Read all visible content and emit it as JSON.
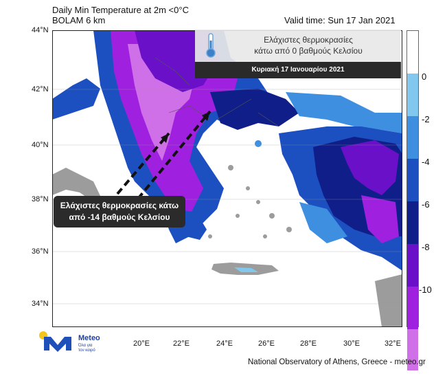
{
  "header": {
    "title_line1": "Daily Min Temperature at 2m <0°C",
    "title_line2": "BOLAM 6 km",
    "valid_time": "Valid time: Sun 17 Jan 2021"
  },
  "map": {
    "lat_labels": [
      "44°N",
      "42°N",
      "40°N",
      "38°N",
      "36°N",
      "34°N"
    ],
    "lon_labels": [
      "20°E",
      "22°E",
      "24°E",
      "26°E",
      "28°E",
      "30°E",
      "32°E"
    ]
  },
  "colorbar": {
    "labels": [
      "0",
      "-2",
      "-4",
      "-6",
      "-8",
      "-10"
    ],
    "colors": [
      "#ffffff",
      "#82c8ee",
      "#3f8fe0",
      "#1c4fc0",
      "#101e8a",
      "#6a10c8",
      "#a020e0",
      "#d070e8"
    ]
  },
  "banner": {
    "line1": "Ελάχιστες θερμοκρασίες",
    "line2": "κάτω από 0 βαθμούς Κελσίου",
    "date": "Κυριακή 17 Ιανουαρίου 2021"
  },
  "callout": {
    "line1": "Ελάχιστες θερμοκρασίες κάτω",
    "line2": "από -14 βαθμούς Κελσίου"
  },
  "logo": {
    "name": "Meteo",
    "tagline1": "Όλα για",
    "tagline2": "τον καιρό"
  },
  "footer": {
    "credit": "National Observatory of Athens, Greece - meteo.gr"
  },
  "icons": {
    "thermometer": "thermometer-icon",
    "logo": "meteo-logo-icon"
  }
}
